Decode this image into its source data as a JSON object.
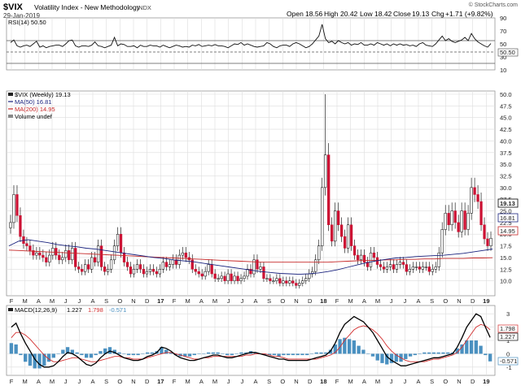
{
  "header": {
    "symbol": "$VIX",
    "name": "Volatility Index - New Methodology",
    "exchange": "INDX",
    "date": "29-Jan-2019",
    "open_label": "Open",
    "open": "18.56",
    "high_label": "High",
    "high": "20.42",
    "low_label": "Low",
    "low": "18.42",
    "close_label": "Close",
    "close": "19.13",
    "chg_label": "Chg",
    "chg": "+1.71 (+9.82%)",
    "copyright": "© StockCharts.com"
  },
  "rsi": {
    "legend": "RSI(14) 50.50",
    "ticks": [
      "90",
      "70",
      "50",
      "30",
      "10"
    ],
    "last_value": "50.50"
  },
  "price": {
    "legend": {
      "main": "$VIX (Weekly) 19.13",
      "ma50": "MA(50) 16.81",
      "ma200": "MA(200) 14.95",
      "volume": "Volume undef"
    },
    "ticks": [
      "50.0",
      "47.5",
      "45.0",
      "42.5",
      "40.0",
      "37.5",
      "35.0",
      "32.5",
      "30.0",
      "27.5",
      "25.0",
      "22.5",
      "20.0",
      "17.5",
      "15.0",
      "12.5",
      "10.0"
    ],
    "badges": {
      "close": "19.13",
      "ma50": "16.81",
      "ma200": "14.95"
    }
  },
  "macd": {
    "legend_label": "MACD(12,26,9)",
    "macd": "1.227",
    "signal": "1.798",
    "hist": "-0.571",
    "ticks": [
      "3",
      "2",
      "1",
      "0",
      "-1"
    ],
    "badges": {
      "signal": "1.798",
      "macd": "1.227",
      "hist": "-0.571"
    }
  },
  "x_axis": {
    "labels": [
      "F",
      "M",
      "A",
      "M",
      "J",
      "J",
      "A",
      "S",
      "O",
      "N",
      "D",
      "17",
      "F",
      "M",
      "A",
      "M",
      "J",
      "J",
      "A",
      "S",
      "O",
      "N",
      "D",
      "18",
      "F",
      "M",
      "A",
      "M",
      "J",
      "J",
      "A",
      "S",
      "O",
      "N",
      "D",
      "19"
    ]
  },
  "colors": {
    "up": "#ffffff",
    "down": "#cc1133",
    "wick": "#000000",
    "ma50": "#1a237e",
    "ma200": "#c62828",
    "macd_line": "#000000",
    "signal_line": "#d32f2f",
    "histogram": "#4a90c0",
    "grid": "#dddddd"
  },
  "chart_data": [
    {
      "type": "line",
      "panel": "RSI",
      "ylim": [
        10,
        90
      ],
      "series": [
        {
          "name": "RSI(14) 50.50",
          "values": [
            52,
            56,
            47,
            45,
            47,
            48,
            46,
            50,
            54,
            45,
            47,
            44,
            46,
            47,
            48,
            48,
            46,
            50,
            55,
            56,
            47,
            45,
            47,
            47,
            46,
            48,
            53,
            47,
            46,
            44,
            46,
            48,
            60,
            47,
            50,
            49,
            46,
            46,
            47,
            44,
            48,
            46,
            46,
            48,
            47,
            47,
            45,
            48,
            46,
            44,
            46,
            48,
            47,
            45,
            46,
            45,
            48,
            47,
            49,
            46,
            47,
            48,
            47,
            49,
            47,
            47,
            46,
            44,
            47,
            50,
            49,
            52,
            48,
            50,
            48,
            46,
            45,
            46,
            47,
            52,
            50,
            46,
            44,
            47,
            48,
            48,
            46,
            50,
            52,
            50,
            47,
            44,
            46,
            50,
            56,
            62,
            80,
            58,
            52,
            54,
            50,
            55,
            52,
            50,
            52,
            48,
            50,
            49,
            52,
            48,
            48,
            50,
            48,
            52,
            50,
            48,
            50,
            47,
            50,
            48,
            50,
            48,
            49,
            47,
            48,
            46,
            50,
            52,
            48,
            47,
            46,
            50,
            56,
            62,
            55,
            58,
            54,
            52,
            54,
            56,
            60,
            55,
            66,
            58,
            53,
            50,
            47,
            45,
            50.5
          ]
        }
      ]
    },
    {
      "type": "candlestick",
      "panel": "Price",
      "ylim": [
        7.5,
        50.0
      ],
      "series": [
        {
          "name": "$VIX (Weekly) 19.13",
          "values": [
            22.5,
            28.5,
            24.0,
            19.5,
            18.0,
            17.5,
            16.5,
            15.5,
            16.0,
            15.5,
            15.0,
            14.0,
            15.5,
            17.0,
            15.5,
            14.5,
            15.0,
            16.5,
            14.5,
            17.0,
            13.0,
            12.5,
            12.0,
            13.5,
            12.5,
            15.0,
            14.0,
            17.5,
            13.0,
            12.0,
            12.5,
            14.5,
            17.5,
            20.0,
            16.0,
            14.0,
            13.0,
            11.5,
            12.5,
            13.5,
            12.5,
            11.5,
            12.0,
            12.5,
            12.0,
            11.5,
            12.5,
            14.0,
            13.0,
            13.5,
            14.5,
            13.5,
            15.5,
            16.0,
            15.0,
            14.5,
            12.5,
            12.0,
            11.5,
            11.0,
            12.0,
            13.5,
            11.5,
            10.5,
            10.5,
            11.0,
            10.0,
            11.5,
            10.0,
            11.0,
            10.0,
            10.5,
            11.0,
            12.5,
            11.5,
            14.5,
            12.5,
            13.0,
            10.5,
            10.5,
            10.0,
            10.0,
            10.5,
            9.5,
            10.0,
            9.5,
            10.0,
            9.5,
            9.0,
            9.5,
            10.0,
            10.5,
            11.5,
            12.0,
            14.5,
            17.5,
            30.0,
            37.0,
            22.0,
            18.5,
            25.0,
            22.0,
            19.5,
            17.0,
            22.0,
            17.5,
            15.5,
            14.5,
            15.5,
            14.0,
            13.0,
            16.0,
            15.0,
            13.5,
            13.0,
            12.5,
            13.0,
            13.5,
            12.5,
            13.5,
            14.0,
            13.5,
            12.0,
            12.5,
            13.0,
            13.0,
            12.5,
            13.0,
            13.0,
            12.0,
            12.5,
            13.0,
            16.0,
            21.0,
            24.5,
            22.0,
            25.0,
            22.5,
            20.5,
            25.0,
            21.0,
            24.5,
            30.0,
            28.5,
            27.0,
            22.0,
            19.0,
            17.5,
            19.13
          ]
        }
      ]
    },
    {
      "type": "line",
      "panel": "Price MA",
      "series": [
        {
          "name": "MA(50) 16.81",
          "values": [
            17.5,
            18.5,
            18.8,
            18.5,
            18.2,
            17.8,
            17.5,
            17.3,
            17.0,
            16.8,
            16.5,
            16.2,
            15.9,
            15.6,
            15.3,
            15.0,
            14.8,
            14.5,
            14.3,
            14.1,
            13.8,
            13.5,
            13.2,
            12.9,
            12.6,
            12.3,
            12.0,
            11.8,
            11.6,
            11.5,
            11.4,
            11.5,
            11.7,
            12.0,
            12.4,
            12.9,
            13.4,
            13.9,
            14.3,
            14.6,
            14.9,
            15.0,
            15.2,
            15.3,
            15.4,
            15.5,
            15.7,
            15.9,
            16.2,
            16.5,
            16.81
          ]
        },
        {
          "name": "MA(200) 14.95",
          "values": [
            16.6,
            16.5,
            16.4,
            16.3,
            16.2,
            16.1,
            16.0,
            15.9,
            15.8,
            15.7,
            15.6,
            15.5,
            15.4,
            15.3,
            15.2,
            15.1,
            15.0,
            14.9,
            14.8,
            14.7,
            14.6,
            14.5,
            14.4,
            14.3,
            14.2,
            14.1,
            14.0,
            14.0,
            14.0,
            14.0,
            14.0,
            14.0,
            14.0,
            14.0,
            14.1,
            14.2,
            14.3,
            14.4,
            14.4,
            14.5,
            14.5,
            14.6,
            14.6,
            14.7,
            14.7,
            14.8,
            14.8,
            14.8,
            14.9,
            14.9,
            14.95
          ]
        }
      ]
    },
    {
      "type": "line",
      "panel": "MACD",
      "ylim": [
        -1.5,
        3.5
      ],
      "series": [
        {
          "name": "MACD(12,26,9)",
          "values": [
            2.0,
            2.3,
            1.5,
            0.8,
            0.2,
            -0.4,
            -0.8,
            -1.0,
            -1.0,
            -0.9,
            -0.6,
            -0.2,
            0.1,
            0.0,
            -0.2,
            -0.5,
            -0.8,
            -0.9,
            -0.7,
            -0.3,
            0.0,
            0.2,
            0.1,
            -0.1,
            -0.3,
            -0.4,
            -0.5,
            -0.5,
            -0.4,
            -0.2,
            -0.1,
            0.1,
            0.5,
            0.4,
            0.2,
            -0.1,
            -0.3,
            -0.4,
            -0.5,
            -0.5,
            -0.4,
            -0.3,
            -0.2,
            -0.1,
            -0.1,
            -0.2,
            -0.3,
            -0.3,
            -0.2,
            -0.1,
            0.0,
            0.1,
            0.1,
            0.0,
            -0.1,
            -0.2,
            -0.3,
            -0.4,
            -0.4,
            -0.5,
            -0.5,
            -0.5,
            -0.5,
            -0.5,
            -0.4,
            -0.3,
            -0.2,
            -0.1,
            0.2,
            0.8,
            1.6,
            2.2,
            2.5,
            2.8,
            2.6,
            2.4,
            2.0,
            1.6,
            1.0,
            0.4,
            -0.2,
            -0.5,
            -0.7,
            -0.9,
            -0.9,
            -0.8,
            -0.7,
            -0.6,
            -0.5,
            -0.4,
            -0.3,
            -0.3,
            -0.2,
            -0.1,
            0.0,
            0.5,
            1.2,
            2.0,
            2.5,
            3.0,
            2.8,
            2.0,
            1.227
          ]
        },
        {
          "name": "Signal",
          "values": [
            1.2,
            1.6,
            1.6,
            1.4,
            1.1,
            0.7,
            0.3,
            -0.1,
            -0.4,
            -0.6,
            -0.6,
            -0.5,
            -0.4,
            -0.3,
            -0.3,
            -0.4,
            -0.5,
            -0.6,
            -0.6,
            -0.5,
            -0.4,
            -0.3,
            -0.2,
            -0.2,
            -0.3,
            -0.3,
            -0.4,
            -0.4,
            -0.4,
            -0.3,
            -0.2,
            -0.1,
            0.0,
            0.1,
            0.1,
            0.0,
            -0.1,
            -0.2,
            -0.3,
            -0.4,
            -0.4,
            -0.3,
            -0.3,
            -0.2,
            -0.2,
            -0.2,
            -0.2,
            -0.2,
            -0.2,
            -0.2,
            -0.1,
            -0.1,
            0.0,
            0.0,
            0.0,
            -0.1,
            -0.2,
            -0.2,
            -0.3,
            -0.4,
            -0.4,
            -0.4,
            -0.4,
            -0.4,
            -0.4,
            -0.4,
            -0.3,
            -0.2,
            -0.1,
            0.1,
            0.5,
            1.0,
            1.4,
            1.8,
            2.0,
            2.1,
            2.0,
            1.8,
            1.5,
            1.1,
            0.6,
            0.2,
            -0.1,
            -0.3,
            -0.5,
            -0.6,
            -0.6,
            -0.6,
            -0.6,
            -0.5,
            -0.4,
            -0.4,
            -0.3,
            -0.2,
            -0.1,
            0.1,
            0.5,
            1.0,
            1.5,
            2.0,
            2.2,
            2.1,
            1.798
          ]
        }
      ]
    }
  ]
}
